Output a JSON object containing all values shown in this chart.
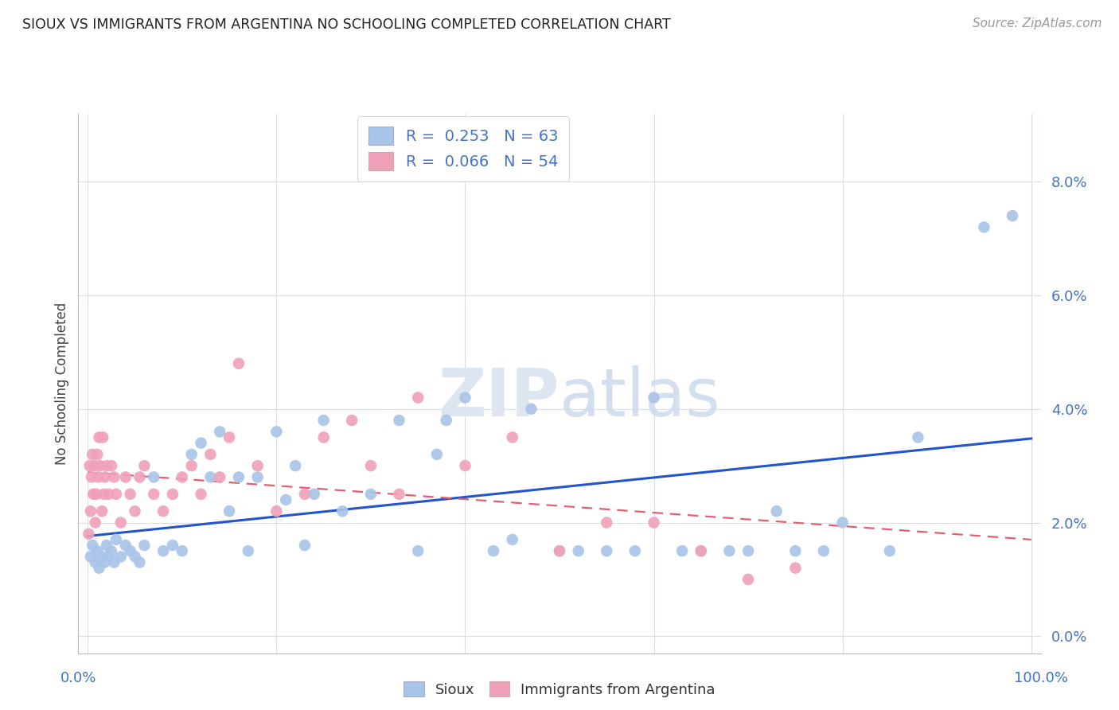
{
  "title": "SIOUX VS IMMIGRANTS FROM ARGENTINA NO SCHOOLING COMPLETED CORRELATION CHART",
  "source": "Source: ZipAtlas.com",
  "ylabel": "No Schooling Completed",
  "legend_sioux": "Sioux",
  "legend_arg": "Immigrants from Argentina",
  "r_sioux": "0.253",
  "n_sioux": "63",
  "r_arg": "0.066",
  "n_arg": "54",
  "sioux_color": "#a8c4e8",
  "arg_color": "#f0a0b8",
  "sioux_line_color": "#2255cc",
  "arg_line_color": "#e06070",
  "background_color": "#ffffff",
  "grid_color": "#d8dde8",
  "ytick_labels": [
    "0.0%",
    "2.0%",
    "4.0%",
    "6.0%",
    "8.0%"
  ],
  "ytick_values": [
    0.0,
    2.0,
    4.0,
    6.0,
    8.0
  ],
  "sioux_x": [
    0.3,
    0.5,
    0.8,
    1.0,
    1.2,
    1.5,
    1.8,
    2.0,
    2.2,
    2.5,
    2.8,
    3.0,
    3.5,
    4.0,
    4.5,
    5.0,
    5.5,
    6.0,
    7.0,
    8.0,
    9.0,
    10.0,
    11.0,
    12.0,
    13.0,
    14.0,
    15.0,
    16.0,
    17.0,
    18.0,
    20.0,
    21.0,
    22.0,
    23.0,
    24.0,
    25.0,
    27.0,
    30.0,
    33.0,
    35.0,
    37.0,
    38.0,
    40.0,
    43.0,
    45.0,
    47.0,
    50.0,
    52.0,
    55.0,
    58.0,
    60.0,
    63.0,
    65.0,
    68.0,
    70.0,
    73.0,
    75.0,
    78.0,
    80.0,
    85.0,
    88.0,
    95.0,
    98.0
  ],
  "sioux_y": [
    1.4,
    1.6,
    1.3,
    1.5,
    1.2,
    1.4,
    1.3,
    1.6,
    1.4,
    1.5,
    1.3,
    1.7,
    1.4,
    1.6,
    1.5,
    1.4,
    1.3,
    1.6,
    2.8,
    1.5,
    1.6,
    1.5,
    3.2,
    3.4,
    2.8,
    3.6,
    2.2,
    2.8,
    1.5,
    2.8,
    3.6,
    2.4,
    3.0,
    1.6,
    2.5,
    3.8,
    2.2,
    2.5,
    3.8,
    1.5,
    3.2,
    3.8,
    4.2,
    1.5,
    1.7,
    4.0,
    1.5,
    1.5,
    1.5,
    1.5,
    4.2,
    1.5,
    1.5,
    1.5,
    1.5,
    2.2,
    1.5,
    1.5,
    2.0,
    1.5,
    3.5,
    7.2,
    7.4
  ],
  "arg_x": [
    0.1,
    0.2,
    0.3,
    0.4,
    0.5,
    0.6,
    0.7,
    0.8,
    0.9,
    1.0,
    1.1,
    1.2,
    1.3,
    1.5,
    1.6,
    1.7,
    1.8,
    2.0,
    2.2,
    2.5,
    2.8,
    3.0,
    3.5,
    4.0,
    4.5,
    5.0,
    5.5,
    6.0,
    7.0,
    8.0,
    9.0,
    10.0,
    11.0,
    12.0,
    13.0,
    14.0,
    15.0,
    16.0,
    18.0,
    20.0,
    23.0,
    25.0,
    28.0,
    30.0,
    33.0,
    35.0,
    40.0,
    45.0,
    50.0,
    55.0,
    60.0,
    65.0,
    70.0,
    75.0
  ],
  "arg_y": [
    1.8,
    3.0,
    2.2,
    2.8,
    3.2,
    2.5,
    3.0,
    2.0,
    2.5,
    3.2,
    2.8,
    3.5,
    3.0,
    2.2,
    3.5,
    2.5,
    2.8,
    3.0,
    2.5,
    3.0,
    2.8,
    2.5,
    2.0,
    2.8,
    2.5,
    2.2,
    2.8,
    3.0,
    2.5,
    2.2,
    2.5,
    2.8,
    3.0,
    2.5,
    3.2,
    2.8,
    3.5,
    4.8,
    3.0,
    2.2,
    2.5,
    3.5,
    3.8,
    3.0,
    2.5,
    4.2,
    3.0,
    3.5,
    1.5,
    2.0,
    2.0,
    1.5,
    1.0,
    1.2
  ]
}
